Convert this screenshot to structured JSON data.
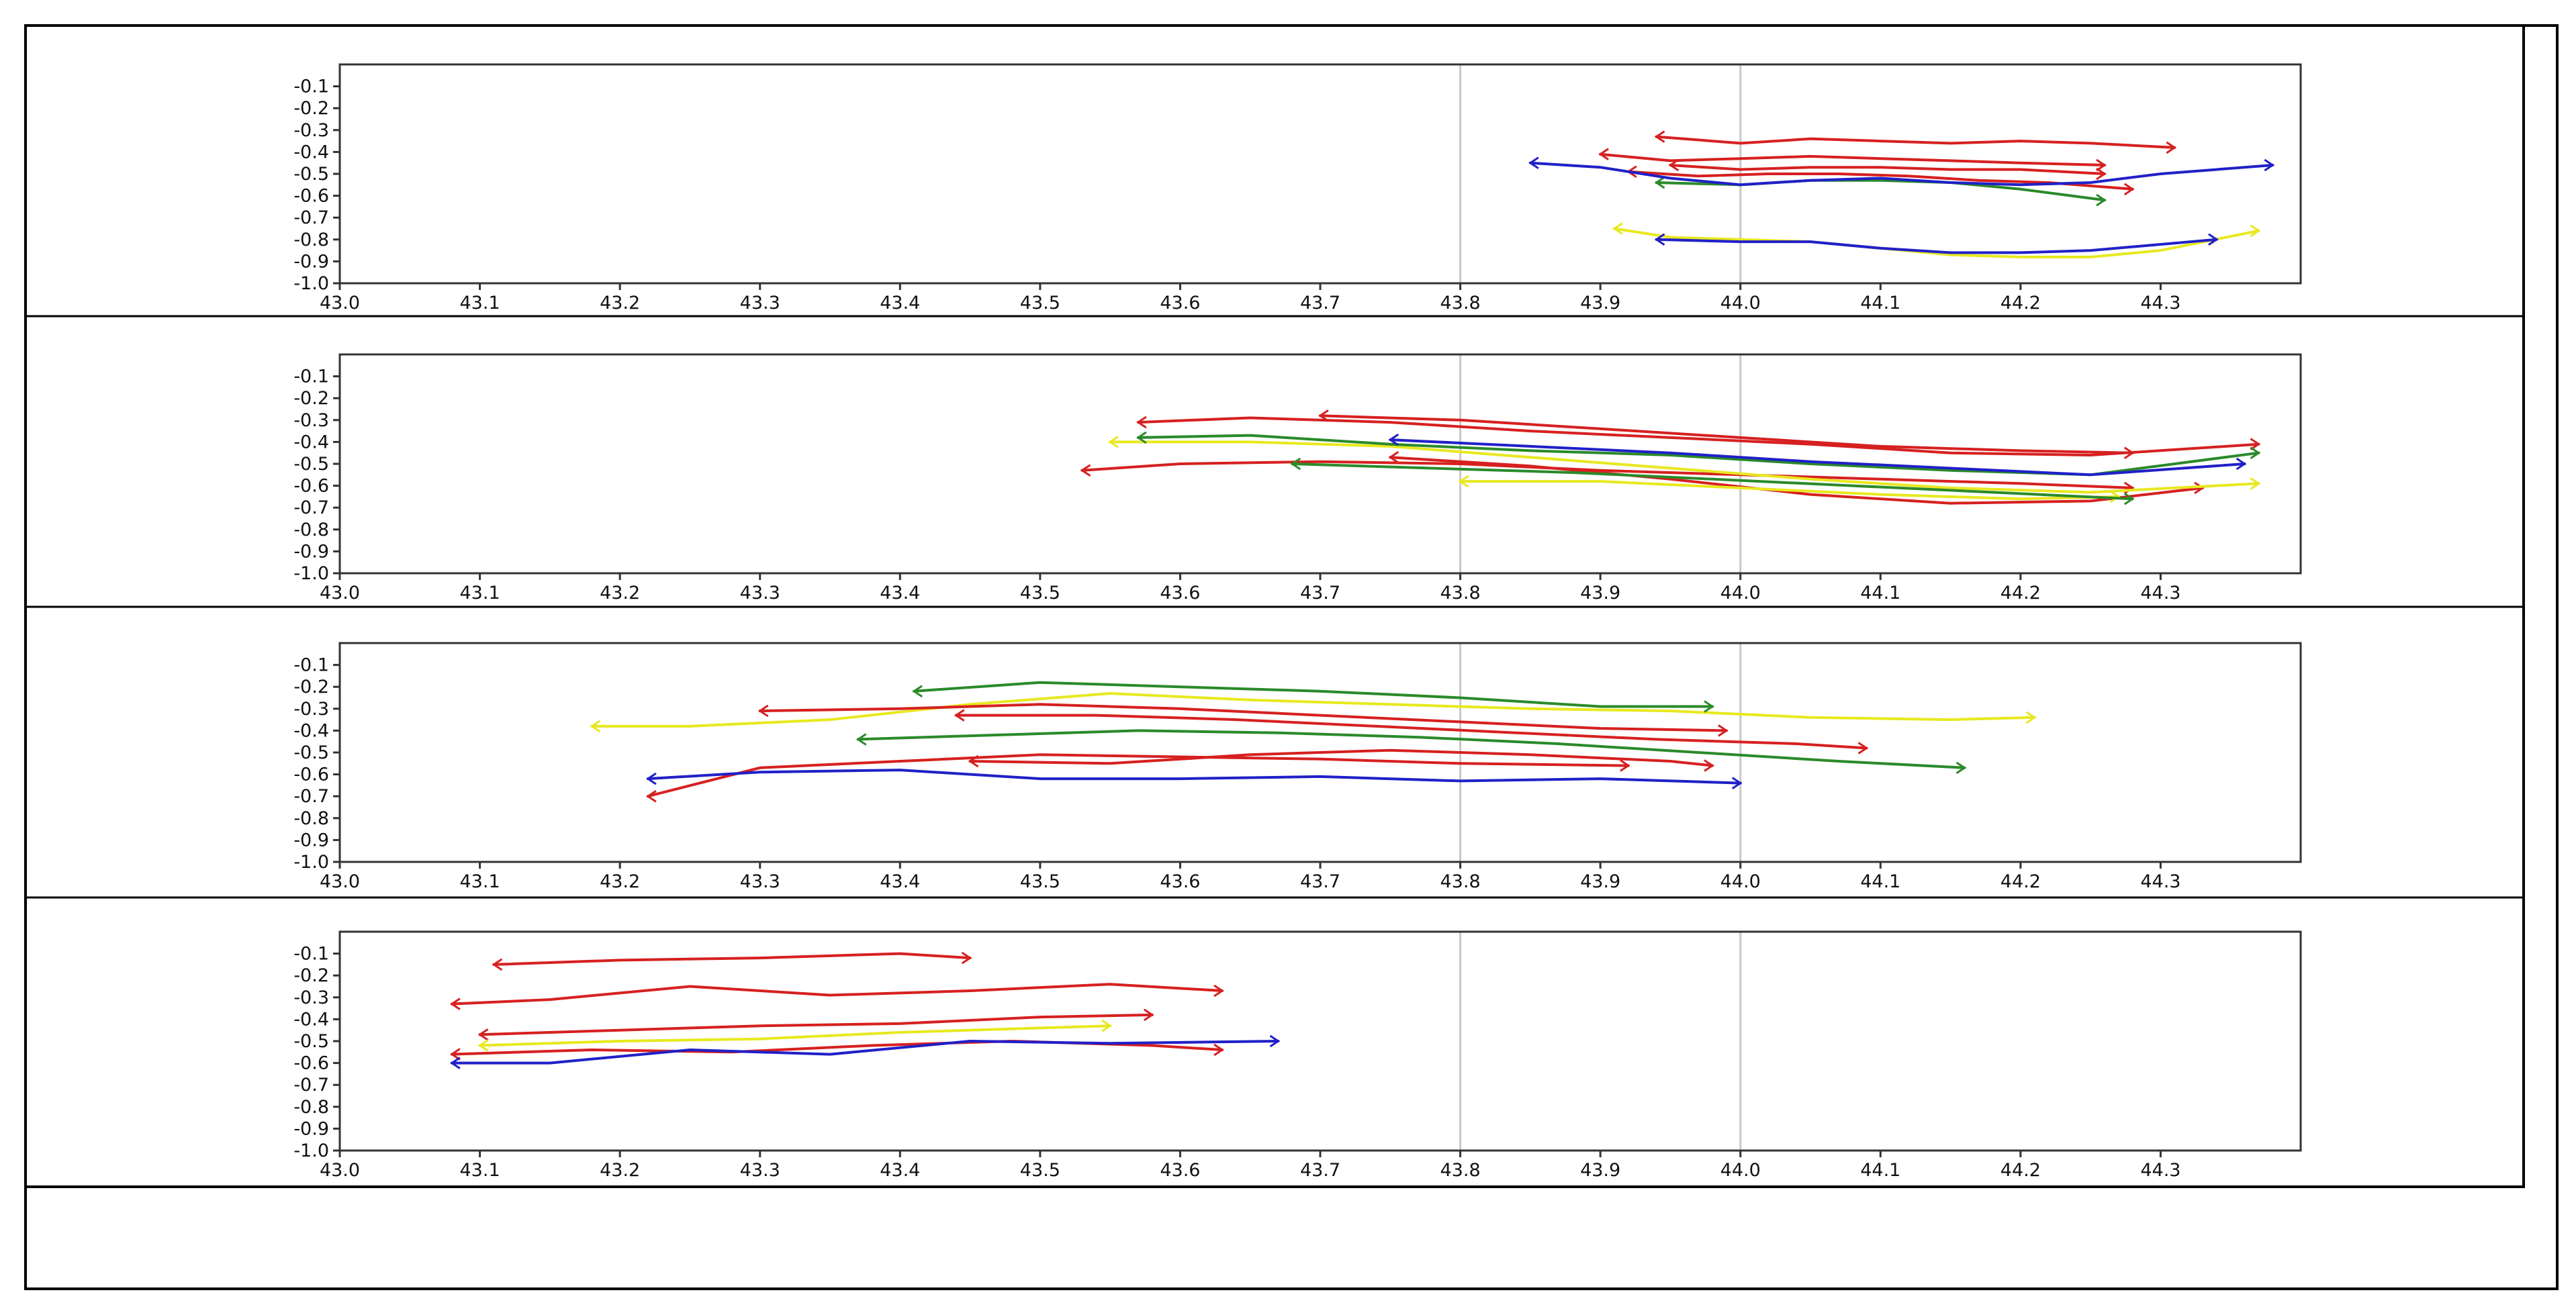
{
  "chart_data": [
    {
      "type": "line",
      "title": "",
      "xlabel": "",
      "ylabel": "",
      "xlim": [
        43.0,
        44.4
      ],
      "ylim": [
        -1.0,
        0.0
      ],
      "xticks": [
        "43.0",
        "43.1",
        "43.2",
        "43.3",
        "43.4",
        "43.5",
        "43.6",
        "43.7",
        "43.8",
        "43.9",
        "44.0",
        "44.1",
        "44.2",
        "44.3"
      ],
      "yticks": [
        "-0.1",
        "-0.2",
        "-0.3",
        "-0.4",
        "-0.5",
        "-0.6",
        "-0.7",
        "-0.8",
        "-0.9",
        "-1.0"
      ],
      "vlines": [
        43.8,
        44.0
      ],
      "grid": false,
      "series": [
        {
          "color": "#d62020",
          "x": [
            43.94,
            44.0,
            44.05,
            44.1,
            44.15,
            44.2,
            44.25,
            44.31
          ],
          "y": [
            -0.33,
            -0.36,
            -0.34,
            -0.35,
            -0.36,
            -0.35,
            -0.36,
            -0.38
          ]
        },
        {
          "color": "#d62020",
          "x": [
            43.9,
            43.95,
            44.0,
            44.05,
            44.1,
            44.15,
            44.2,
            44.26
          ],
          "y": [
            -0.41,
            -0.44,
            -0.43,
            -0.42,
            -0.43,
            -0.44,
            -0.45,
            -0.46
          ]
        },
        {
          "color": "#d62020",
          "x": [
            43.95,
            44.0,
            44.05,
            44.1,
            44.15,
            44.2,
            44.26
          ],
          "y": [
            -0.46,
            -0.48,
            -0.47,
            -0.47,
            -0.48,
            -0.48,
            -0.5
          ]
        },
        {
          "color": "#d62020",
          "x": [
            43.92,
            43.97,
            44.02,
            44.07,
            44.12,
            44.17,
            44.22,
            44.28
          ],
          "y": [
            -0.49,
            -0.51,
            -0.5,
            -0.5,
            -0.51,
            -0.53,
            -0.54,
            -0.57
          ]
        },
        {
          "color": "#2a8a2a",
          "x": [
            43.94,
            44.0,
            44.05,
            44.1,
            44.15,
            44.2,
            44.26
          ],
          "y": [
            -0.54,
            -0.55,
            -0.53,
            -0.53,
            -0.54,
            -0.57,
            -0.62
          ]
        },
        {
          "color": "#e8e820",
          "x": [
            43.91,
            43.95,
            44.0,
            44.05,
            44.1,
            44.15,
            44.2,
            44.25,
            44.3,
            44.37
          ],
          "y": [
            -0.75,
            -0.79,
            -0.8,
            -0.81,
            -0.84,
            -0.87,
            -0.88,
            -0.88,
            -0.85,
            -0.76
          ]
        },
        {
          "color": "#2020c8",
          "x": [
            43.85,
            43.9,
            43.95,
            44.0,
            44.05,
            44.1,
            44.15,
            44.2,
            44.25,
            44.3,
            44.38
          ],
          "y": [
            -0.45,
            -0.47,
            -0.52,
            -0.55,
            -0.53,
            -0.52,
            -0.54,
            -0.55,
            -0.54,
            -0.5,
            -0.46
          ]
        },
        {
          "color": "#2020c8",
          "x": [
            43.94,
            44.0,
            44.05,
            44.1,
            44.15,
            44.2,
            44.25,
            44.34
          ],
          "y": [
            -0.8,
            -0.81,
            -0.81,
            -0.84,
            -0.86,
            -0.86,
            -0.85,
            -0.8
          ]
        }
      ]
    },
    {
      "type": "line",
      "title": "",
      "xlabel": "",
      "ylabel": "",
      "xlim": [
        43.0,
        44.4
      ],
      "ylim": [
        -1.0,
        0.0
      ],
      "xticks": [
        "43.0",
        "43.1",
        "43.2",
        "43.3",
        "43.4",
        "43.5",
        "43.6",
        "43.7",
        "43.8",
        "43.9",
        "44.0",
        "44.1",
        "44.2",
        "44.3"
      ],
      "yticks": [
        "-0.1",
        "-0.2",
        "-0.3",
        "-0.4",
        "-0.5",
        "-0.6",
        "-0.7",
        "-0.8",
        "-0.9",
        "-1.0"
      ],
      "vlines": [
        43.8,
        44.0
      ],
      "grid": false,
      "series": [
        {
          "color": "#d62020",
          "x": [
            43.57,
            43.65,
            43.75,
            43.85,
            43.95,
            44.05,
            44.15,
            44.25,
            44.37
          ],
          "y": [
            -0.31,
            -0.29,
            -0.31,
            -0.35,
            -0.38,
            -0.41,
            -0.45,
            -0.46,
            -0.41
          ]
        },
        {
          "color": "#d62020",
          "x": [
            43.7,
            43.8,
            43.9,
            44.0,
            44.1,
            44.2,
            44.28
          ],
          "y": [
            -0.28,
            -0.3,
            -0.34,
            -0.38,
            -0.42,
            -0.44,
            -0.45
          ]
        },
        {
          "color": "#d62020",
          "x": [
            43.53,
            43.6,
            43.7,
            43.8,
            43.9,
            44.0,
            44.1,
            44.2,
            44.28
          ],
          "y": [
            -0.53,
            -0.5,
            -0.49,
            -0.5,
            -0.53,
            -0.55,
            -0.57,
            -0.59,
            -0.61
          ]
        },
        {
          "color": "#d62020",
          "x": [
            43.75,
            43.85,
            43.95,
            44.05,
            44.15,
            44.25,
            44.33
          ],
          "y": [
            -0.47,
            -0.51,
            -0.57,
            -0.64,
            -0.68,
            -0.67,
            -0.61
          ]
        },
        {
          "color": "#e8e820",
          "x": [
            43.55,
            43.65,
            43.75,
            43.85,
            43.95,
            44.05,
            44.15,
            44.25,
            44.37
          ],
          "y": [
            -0.4,
            -0.4,
            -0.42,
            -0.47,
            -0.52,
            -0.57,
            -0.61,
            -0.63,
            -0.59
          ]
        },
        {
          "color": "#e8e820",
          "x": [
            43.8,
            43.9,
            44.0,
            44.1,
            44.2,
            44.27
          ],
          "y": [
            -0.58,
            -0.58,
            -0.61,
            -0.64,
            -0.66,
            -0.65
          ]
        },
        {
          "color": "#2a8a2a",
          "x": [
            43.57,
            43.65,
            43.75,
            43.85,
            43.95,
            44.05,
            44.15,
            44.25,
            44.37
          ],
          "y": [
            -0.38,
            -0.37,
            -0.41,
            -0.44,
            -0.46,
            -0.5,
            -0.53,
            -0.55,
            -0.45
          ]
        },
        {
          "color": "#2a8a2a",
          "x": [
            43.68,
            43.78,
            43.88,
            43.98,
            44.08,
            44.18,
            44.28
          ],
          "y": [
            -0.5,
            -0.52,
            -0.54,
            -0.57,
            -0.6,
            -0.63,
            -0.66
          ]
        },
        {
          "color": "#2020c8",
          "x": [
            43.75,
            43.85,
            43.95,
            44.05,
            44.15,
            44.25,
            44.36
          ],
          "y": [
            -0.39,
            -0.42,
            -0.45,
            -0.49,
            -0.52,
            -0.55,
            -0.5
          ]
        }
      ]
    },
    {
      "type": "line",
      "title": "",
      "xlabel": "",
      "ylabel": "",
      "xlim": [
        43.0,
        44.4
      ],
      "ylim": [
        -1.0,
        0.0
      ],
      "xticks": [
        "43.0",
        "43.1",
        "43.2",
        "43.3",
        "43.4",
        "43.5",
        "43.6",
        "43.7",
        "43.8",
        "43.9",
        "44.0",
        "44.1",
        "44.2",
        "44.3"
      ],
      "yticks": [
        "-0.1",
        "-0.2",
        "-0.3",
        "-0.4",
        "-0.5",
        "-0.6",
        "-0.7",
        "-0.8",
        "-0.9",
        "-1.0"
      ],
      "vlines": [
        43.8,
        44.0
      ],
      "grid": false,
      "series": [
        {
          "color": "#e8e820",
          "x": [
            43.18,
            43.25,
            43.35,
            43.45,
            43.55,
            43.65,
            43.75,
            43.85,
            43.95,
            44.05,
            44.15,
            44.21
          ],
          "y": [
            -0.38,
            -0.38,
            -0.35,
            -0.28,
            -0.23,
            -0.26,
            -0.28,
            -0.3,
            -0.31,
            -0.34,
            -0.35,
            -0.34
          ]
        },
        {
          "color": "#2a8a2a",
          "x": [
            43.41,
            43.5,
            43.6,
            43.7,
            43.8,
            43.9,
            43.98
          ],
          "y": [
            -0.22,
            -0.18,
            -0.2,
            -0.22,
            -0.25,
            -0.29,
            -0.29
          ]
        },
        {
          "color": "#2a8a2a",
          "x": [
            43.37,
            43.47,
            43.57,
            43.67,
            43.77,
            43.87,
            43.97,
            44.07,
            44.16
          ],
          "y": [
            -0.44,
            -0.42,
            -0.4,
            -0.41,
            -0.43,
            -0.46,
            -0.5,
            -0.54,
            -0.57
          ]
        },
        {
          "color": "#d62020",
          "x": [
            43.3,
            43.4,
            43.5,
            43.6,
            43.7,
            43.8,
            43.9,
            43.99
          ],
          "y": [
            -0.31,
            -0.3,
            -0.28,
            -0.3,
            -0.33,
            -0.36,
            -0.39,
            -0.4
          ]
        },
        {
          "color": "#d62020",
          "x": [
            43.44,
            43.54,
            43.64,
            43.74,
            43.84,
            43.94,
            44.04,
            44.09
          ],
          "y": [
            -0.33,
            -0.33,
            -0.35,
            -0.38,
            -0.41,
            -0.44,
            -0.46,
            -0.48
          ]
        },
        {
          "color": "#d62020",
          "x": [
            43.22,
            43.3,
            43.4,
            43.5,
            43.6,
            43.7,
            43.8,
            43.92
          ],
          "y": [
            -0.7,
            -0.57,
            -0.54,
            -0.51,
            -0.52,
            -0.53,
            -0.55,
            -0.56
          ]
        },
        {
          "color": "#d62020",
          "x": [
            43.45,
            43.55,
            43.65,
            43.75,
            43.85,
            43.95,
            43.98
          ],
          "y": [
            -0.54,
            -0.55,
            -0.51,
            -0.49,
            -0.51,
            -0.54,
            -0.56
          ]
        },
        {
          "color": "#2020c8",
          "x": [
            43.22,
            43.3,
            43.4,
            43.5,
            43.6,
            43.7,
            43.8,
            43.9,
            44.0
          ],
          "y": [
            -0.62,
            -0.59,
            -0.58,
            -0.62,
            -0.62,
            -0.61,
            -0.63,
            -0.62,
            -0.64
          ]
        }
      ]
    },
    {
      "type": "line",
      "title": "",
      "xlabel": "",
      "ylabel": "",
      "xlim": [
        43.0,
        44.4
      ],
      "ylim": [
        -1.0,
        0.0
      ],
      "xticks": [
        "43.0",
        "43.1",
        "43.2",
        "43.3",
        "43.4",
        "43.5",
        "43.6",
        "43.7",
        "43.8",
        "43.9",
        "44.0",
        "44.1",
        "44.2",
        "44.3"
      ],
      "yticks": [
        "-0.1",
        "-0.2",
        "-0.3",
        "-0.4",
        "-0.5",
        "-0.6",
        "-0.7",
        "-0.8",
        "-0.9",
        "-1.0"
      ],
      "vlines": [
        43.8,
        44.0
      ],
      "grid": false,
      "series": [
        {
          "color": "#d62020",
          "x": [
            43.11,
            43.2,
            43.3,
            43.4,
            43.45
          ],
          "y": [
            -0.15,
            -0.13,
            -0.12,
            -0.1,
            -0.12
          ]
        },
        {
          "color": "#d62020",
          "x": [
            43.08,
            43.15,
            43.25,
            43.35,
            43.45,
            43.55,
            43.63
          ],
          "y": [
            -0.33,
            -0.31,
            -0.25,
            -0.29,
            -0.27,
            -0.24,
            -0.27
          ]
        },
        {
          "color": "#d62020",
          "x": [
            43.1,
            43.2,
            43.3,
            43.4,
            43.5,
            43.58
          ],
          "y": [
            -0.47,
            -0.45,
            -0.43,
            -0.42,
            -0.39,
            -0.38
          ]
        },
        {
          "color": "#d62020",
          "x": [
            43.08,
            43.18,
            43.28,
            43.38,
            43.48,
            43.58,
            43.63
          ],
          "y": [
            -0.56,
            -0.54,
            -0.55,
            -0.52,
            -0.5,
            -0.52,
            -0.54
          ]
        },
        {
          "color": "#e8e820",
          "x": [
            43.1,
            43.2,
            43.3,
            43.4,
            43.5,
            43.55
          ],
          "y": [
            -0.52,
            -0.5,
            -0.49,
            -0.46,
            -0.44,
            -0.43
          ]
        },
        {
          "color": "#2020c8",
          "x": [
            43.08,
            43.15,
            43.25,
            43.35,
            43.45,
            43.55,
            43.67
          ],
          "y": [
            -0.6,
            -0.6,
            -0.54,
            -0.56,
            -0.5,
            -0.51,
            -0.5
          ]
        }
      ]
    }
  ]
}
